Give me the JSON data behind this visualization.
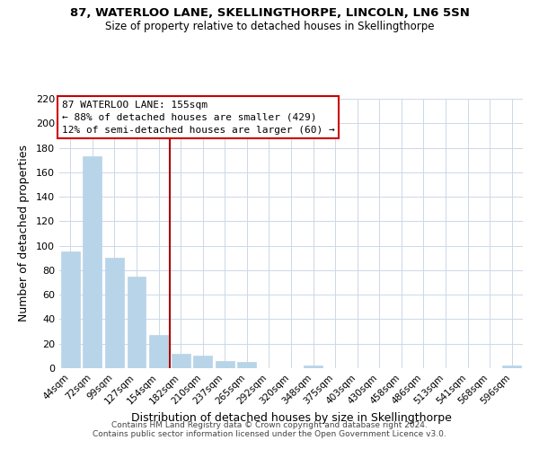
{
  "title": "87, WATERLOO LANE, SKELLINGTHORPE, LINCOLN, LN6 5SN",
  "subtitle": "Size of property relative to detached houses in Skellingthorpe",
  "xlabel": "Distribution of detached houses by size in Skellingthorpe",
  "ylabel": "Number of detached properties",
  "bar_color": "#b8d4e8",
  "property_line_color": "#aa0000",
  "categories": [
    "44sqm",
    "72sqm",
    "99sqm",
    "127sqm",
    "154sqm",
    "182sqm",
    "210sqm",
    "237sqm",
    "265sqm",
    "292sqm",
    "320sqm",
    "348sqm",
    "375sqm",
    "403sqm",
    "430sqm",
    "458sqm",
    "486sqm",
    "513sqm",
    "541sqm",
    "568sqm",
    "596sqm"
  ],
  "values": [
    95,
    173,
    90,
    75,
    27,
    12,
    10,
    6,
    5,
    0,
    0,
    2,
    0,
    0,
    0,
    0,
    0,
    0,
    0,
    0,
    2
  ],
  "ylim": [
    0,
    220
  ],
  "yticks": [
    0,
    20,
    40,
    60,
    80,
    100,
    120,
    140,
    160,
    180,
    200,
    220
  ],
  "property_label": "87 WATERLOO LANE: 155sqm",
  "annotation_line1": "← 88% of detached houses are smaller (429)",
  "annotation_line2": "12% of semi-detached houses are larger (60) →",
  "property_bar_index": 4,
  "footer_line1": "Contains HM Land Registry data © Crown copyright and database right 2024.",
  "footer_line2": "Contains public sector information licensed under the Open Government Licence v3.0.",
  "background_color": "#ffffff",
  "grid_color": "#ccd8e8"
}
